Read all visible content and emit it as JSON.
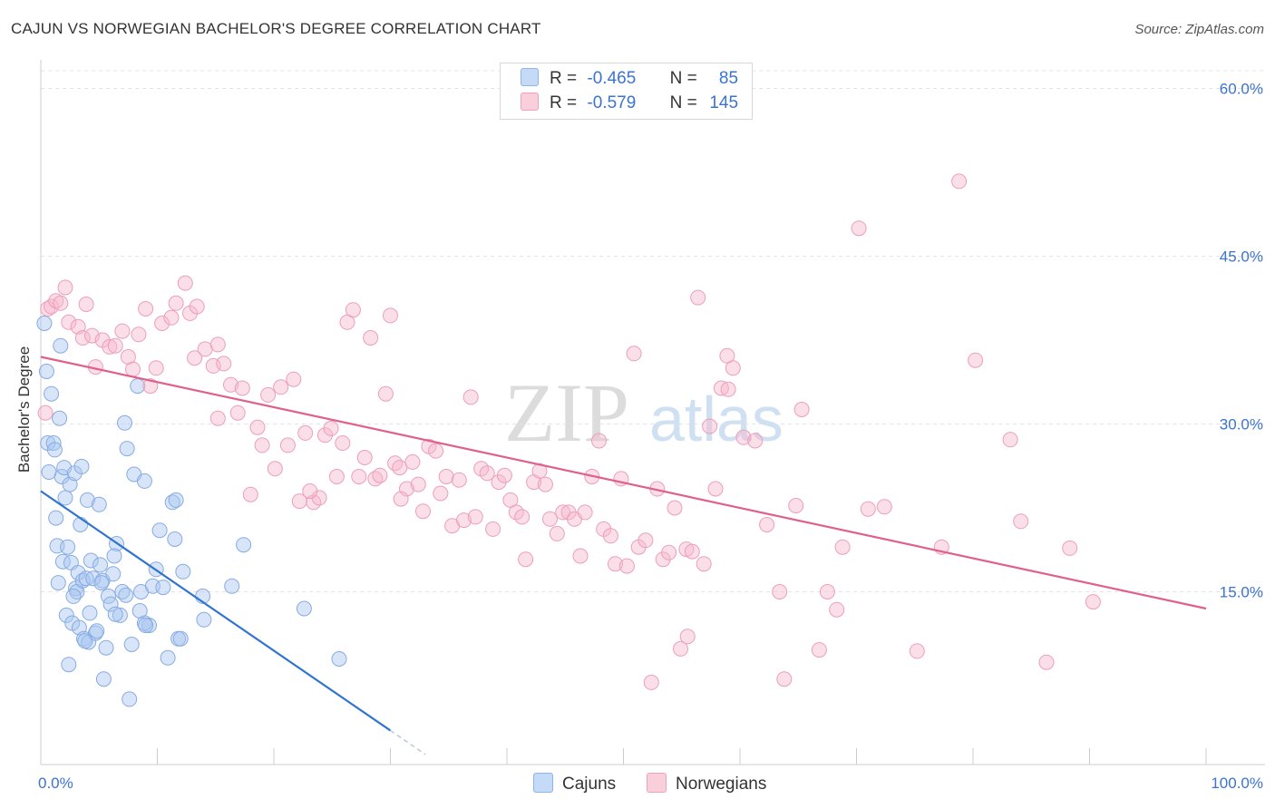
{
  "header": {
    "title": "CAJUN VS NORWEGIAN BACHELOR'S DEGREE CORRELATION CHART",
    "source": "Source: ZipAtlas.com"
  },
  "legend": {
    "rows": [
      {
        "r_label": "R =",
        "r_value": "-0.465",
        "n_label": "N =",
        "n_value": "85",
        "color": "#a9c6ef"
      },
      {
        "r_label": "R =",
        "r_value": "-0.579",
        "n_label": "N =",
        "n_value": "145",
        "color": "#f6b8cb"
      }
    ]
  },
  "bottom_legend": [
    {
      "label": "Cajuns",
      "color": "#a9c6ef"
    },
    {
      "label": "Norwegians",
      "color": "#f6b8cb"
    }
  ],
  "watermark": {
    "part1": "ZIP",
    "part2": "atlas"
  },
  "chart_data": {
    "type": "scatter",
    "title": "CAJUN VS NORWEGIAN BACHELOR'S DEGREE CORRELATION CHART",
    "xlabel": "",
    "ylabel": "Bachelor's Degree",
    "xlim": [
      0,
      100
    ],
    "ylim": [
      0,
      62
    ],
    "x_tick_labels": [
      "0.0%",
      "100.0%"
    ],
    "y_ticks": [
      15,
      30,
      45,
      60
    ],
    "y_tick_labels": [
      "15.0%",
      "30.0%",
      "45.0%",
      "60.0%"
    ],
    "grid": true,
    "legend_position": "top-center",
    "series": [
      {
        "name": "Cajuns",
        "color": "#a9c6ef",
        "line_color": "#2f74d0",
        "r": -0.465,
        "n": 85,
        "trend": {
          "x0": 0,
          "y0": 24.0,
          "x1": 30,
          "y1": 2.6,
          "dash_to_x": 33
        },
        "points": [
          [
            0.3,
            39.0
          ],
          [
            0.5,
            34.7
          ],
          [
            0.6,
            28.3
          ],
          [
            0.7,
            25.7
          ],
          [
            0.9,
            32.7
          ],
          [
            1.1,
            28.3
          ],
          [
            1.2,
            27.7
          ],
          [
            1.3,
            21.6
          ],
          [
            1.4,
            19.1
          ],
          [
            1.6,
            30.5
          ],
          [
            1.7,
            37.0
          ],
          [
            1.8,
            25.3
          ],
          [
            1.9,
            17.7
          ],
          [
            2.0,
            26.1
          ],
          [
            2.1,
            23.4
          ],
          [
            2.2,
            12.9
          ],
          [
            2.3,
            19.0
          ],
          [
            2.4,
            8.5
          ],
          [
            2.5,
            24.6
          ],
          [
            2.6,
            17.6
          ],
          [
            2.7,
            12.2
          ],
          [
            2.9,
            25.6
          ],
          [
            3.0,
            15.3
          ],
          [
            3.1,
            15.0
          ],
          [
            3.2,
            16.7
          ],
          [
            3.3,
            11.8
          ],
          [
            3.4,
            21.0
          ],
          [
            3.5,
            26.2
          ],
          [
            3.6,
            16.0
          ],
          [
            3.7,
            10.8
          ],
          [
            3.9,
            16.2
          ],
          [
            4.0,
            23.2
          ],
          [
            4.1,
            10.5
          ],
          [
            4.3,
            17.8
          ],
          [
            4.5,
            16.2
          ],
          [
            4.7,
            11.3
          ],
          [
            4.8,
            11.5
          ],
          [
            5.0,
            22.8
          ],
          [
            5.1,
            17.4
          ],
          [
            5.3,
            16.0
          ],
          [
            5.4,
            7.2
          ],
          [
            5.6,
            10.0
          ],
          [
            5.8,
            14.6
          ],
          [
            6.0,
            13.9
          ],
          [
            6.2,
            16.6
          ],
          [
            6.5,
            19.3
          ],
          [
            6.8,
            12.9
          ],
          [
            7.0,
            15.0
          ],
          [
            7.2,
            30.1
          ],
          [
            7.4,
            27.8
          ],
          [
            7.6,
            5.4
          ],
          [
            7.8,
            10.3
          ],
          [
            8.0,
            25.5
          ],
          [
            8.3,
            33.4
          ],
          [
            8.6,
            15.0
          ],
          [
            8.9,
            24.9
          ],
          [
            9.3,
            12.0
          ],
          [
            9.6,
            15.5
          ],
          [
            9.9,
            17.0
          ],
          [
            10.2,
            20.5
          ],
          [
            10.5,
            15.4
          ],
          [
            10.9,
            9.1
          ],
          [
            11.3,
            23.0
          ],
          [
            11.5,
            19.7
          ],
          [
            11.8,
            10.8
          ],
          [
            12.2,
            16.8
          ],
          [
            13.9,
            14.6
          ],
          [
            14.0,
            12.5
          ],
          [
            16.4,
            15.5
          ],
          [
            17.4,
            19.2
          ],
          [
            22.6,
            13.5
          ],
          [
            25.6,
            9.0
          ],
          [
            11.6,
            23.2
          ],
          [
            12.0,
            10.8
          ],
          [
            6.3,
            18.2
          ],
          [
            8.9,
            12.2
          ],
          [
            7.3,
            14.7
          ],
          [
            1.5,
            15.8
          ],
          [
            3.8,
            10.6
          ],
          [
            5.2,
            15.8
          ],
          [
            9.0,
            12.0
          ],
          [
            6.4,
            13.0
          ],
          [
            2.8,
            14.6
          ],
          [
            4.2,
            13.1
          ],
          [
            8.5,
            13.3
          ]
        ]
      },
      {
        "name": "Norwegians",
        "color": "#f6b8cb",
        "line_color": "#e0608c",
        "r": -0.579,
        "n": 145,
        "trend": {
          "x0": 0,
          "y0": 36.0,
          "x1": 100,
          "y1": 13.5
        },
        "points": [
          [
            0.4,
            31.0
          ],
          [
            0.6,
            40.3
          ],
          [
            0.9,
            40.5
          ],
          [
            1.3,
            41.0
          ],
          [
            1.7,
            40.8
          ],
          [
            2.1,
            42.2
          ],
          [
            2.4,
            39.1
          ],
          [
            3.2,
            38.7
          ],
          [
            3.6,
            37.7
          ],
          [
            3.9,
            40.7
          ],
          [
            4.4,
            37.9
          ],
          [
            4.7,
            35.1
          ],
          [
            5.3,
            37.5
          ],
          [
            5.9,
            36.9
          ],
          [
            6.4,
            37.0
          ],
          [
            7.0,
            38.3
          ],
          [
            7.5,
            36.0
          ],
          [
            7.9,
            34.9
          ],
          [
            8.4,
            38.0
          ],
          [
            9.0,
            40.3
          ],
          [
            9.4,
            33.4
          ],
          [
            9.9,
            35.0
          ],
          [
            10.4,
            39.0
          ],
          [
            11.2,
            39.5
          ],
          [
            11.6,
            40.8
          ],
          [
            12.4,
            42.6
          ],
          [
            12.8,
            39.9
          ],
          [
            13.4,
            40.5
          ],
          [
            14.1,
            36.7
          ],
          [
            14.8,
            35.2
          ],
          [
            15.2,
            37.1
          ],
          [
            15.7,
            35.4
          ],
          [
            16.3,
            33.5
          ],
          [
            16.9,
            31.0
          ],
          [
            17.3,
            33.2
          ],
          [
            18.0,
            23.7
          ],
          [
            18.6,
            29.7
          ],
          [
            19.0,
            28.1
          ],
          [
            19.5,
            32.6
          ],
          [
            20.1,
            26.0
          ],
          [
            20.6,
            33.3
          ],
          [
            21.2,
            28.1
          ],
          [
            21.7,
            34.0
          ],
          [
            22.2,
            23.1
          ],
          [
            22.7,
            29.2
          ],
          [
            23.4,
            23.0
          ],
          [
            23.9,
            23.4
          ],
          [
            24.4,
            29.0
          ],
          [
            24.9,
            29.6
          ],
          [
            25.4,
            25.3
          ],
          [
            25.9,
            28.3
          ],
          [
            26.3,
            39.1
          ],
          [
            26.8,
            40.2
          ],
          [
            27.3,
            25.3
          ],
          [
            27.8,
            27.0
          ],
          [
            28.3,
            37.7
          ],
          [
            28.7,
            25.1
          ],
          [
            29.1,
            25.4
          ],
          [
            29.6,
            32.7
          ],
          [
            30.0,
            39.7
          ],
          [
            30.4,
            26.5
          ],
          [
            30.8,
            26.1
          ],
          [
            31.4,
            24.2
          ],
          [
            31.9,
            26.6
          ],
          [
            32.4,
            24.6
          ],
          [
            32.8,
            22.2
          ],
          [
            33.3,
            28.0
          ],
          [
            33.9,
            27.6
          ],
          [
            34.3,
            23.8
          ],
          [
            34.8,
            25.3
          ],
          [
            35.3,
            20.9
          ],
          [
            35.9,
            25.0
          ],
          [
            36.3,
            21.4
          ],
          [
            36.9,
            32.4
          ],
          [
            37.3,
            21.7
          ],
          [
            37.8,
            26.0
          ],
          [
            38.3,
            25.6
          ],
          [
            38.8,
            20.6
          ],
          [
            39.3,
            24.8
          ],
          [
            39.8,
            25.4
          ],
          [
            40.3,
            23.2
          ],
          [
            40.8,
            22.1
          ],
          [
            41.3,
            21.7
          ],
          [
            41.6,
            17.9
          ],
          [
            42.3,
            24.8
          ],
          [
            42.8,
            25.8
          ],
          [
            43.3,
            24.6
          ],
          [
            43.7,
            21.5
          ],
          [
            44.3,
            20.2
          ],
          [
            44.8,
            22.1
          ],
          [
            45.3,
            22.1
          ],
          [
            45.8,
            21.5
          ],
          [
            46.3,
            18.2
          ],
          [
            46.7,
            22.1
          ],
          [
            47.3,
            25.3
          ],
          [
            47.9,
            28.5
          ],
          [
            48.3,
            20.6
          ],
          [
            48.9,
            20.0
          ],
          [
            49.3,
            17.5
          ],
          [
            49.8,
            25.1
          ],
          [
            50.3,
            17.3
          ],
          [
            50.9,
            36.3
          ],
          [
            51.3,
            19.0
          ],
          [
            51.9,
            19.6
          ],
          [
            52.4,
            6.9
          ],
          [
            52.9,
            24.2
          ],
          [
            53.4,
            17.9
          ],
          [
            53.9,
            18.5
          ],
          [
            54.4,
            22.5
          ],
          [
            54.9,
            9.9
          ],
          [
            55.4,
            18.8
          ],
          [
            55.9,
            18.6
          ],
          [
            56.4,
            41.3
          ],
          [
            56.9,
            17.5
          ],
          [
            57.4,
            29.8
          ],
          [
            57.9,
            24.2
          ],
          [
            58.4,
            33.2
          ],
          [
            58.9,
            36.1
          ],
          [
            59.4,
            35.0
          ],
          [
            60.3,
            28.8
          ],
          [
            61.3,
            28.5
          ],
          [
            62.3,
            21.0
          ],
          [
            63.8,
            7.2
          ],
          [
            64.8,
            22.7
          ],
          [
            65.3,
            31.3
          ],
          [
            66.8,
            9.8
          ],
          [
            67.5,
            15.0
          ],
          [
            68.3,
            13.4
          ],
          [
            68.8,
            19.0
          ],
          [
            70.2,
            47.5
          ],
          [
            71.0,
            22.4
          ],
          [
            72.4,
            22.6
          ],
          [
            75.2,
            9.7
          ],
          [
            77.3,
            19.0
          ],
          [
            78.8,
            51.7
          ],
          [
            80.2,
            35.7
          ],
          [
            83.2,
            28.6
          ],
          [
            84.1,
            21.3
          ],
          [
            86.3,
            8.7
          ],
          [
            88.3,
            18.9
          ],
          [
            90.3,
            14.1
          ],
          [
            30.9,
            23.3
          ],
          [
            23.1,
            24.0
          ],
          [
            13.2,
            35.9
          ],
          [
            15.2,
            30.5
          ],
          [
            63.4,
            15.0
          ],
          [
            55.5,
            11.0
          ],
          [
            59.0,
            33.1
          ]
        ]
      }
    ]
  }
}
